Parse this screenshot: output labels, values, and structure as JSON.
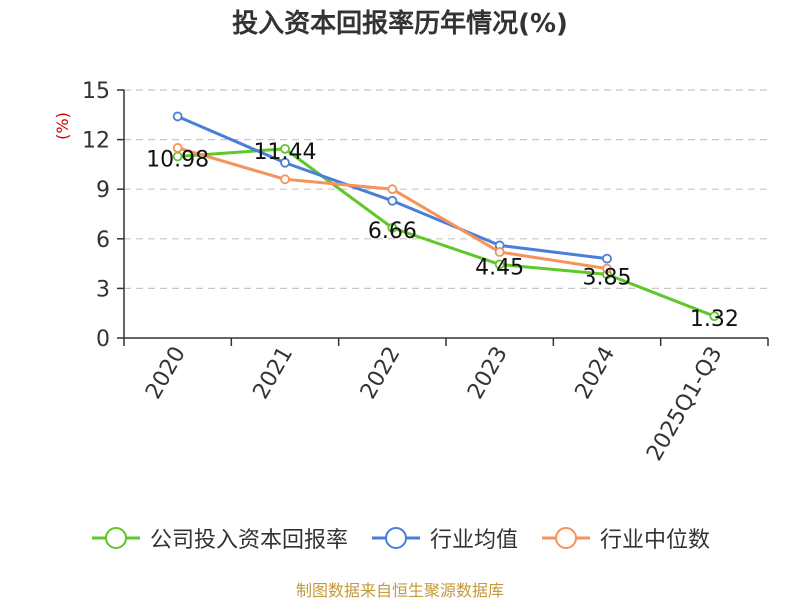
{
  "chart_data": {
    "type": "line",
    "title": "投入资本回报率历年情况(%)",
    "ylabel": "(%)",
    "xlabel": "",
    "ylim": [
      0,
      15
    ],
    "yticks": [
      0,
      3,
      6,
      9,
      12,
      15
    ],
    "grid": true,
    "legend_position": "bottom",
    "categories": [
      "2020",
      "2021",
      "2022",
      "2023",
      "2024",
      "2025Q1-Q3"
    ],
    "series": [
      {
        "name": "公司投入资本回报率",
        "color": "#5fc72a",
        "values": [
          10.98,
          11.44,
          6.66,
          4.45,
          3.85,
          1.32
        ],
        "labels": [
          "10.98",
          "11.44",
          "6.66",
          "4.45",
          "3.85",
          "1.32"
        ]
      },
      {
        "name": "行业均值",
        "color": "#4a7fd8",
        "values": [
          13.4,
          10.6,
          8.3,
          5.6,
          4.8,
          null
        ]
      },
      {
        "name": "行业中位数",
        "color": "#f5935a",
        "values": [
          11.5,
          9.6,
          9.0,
          5.2,
          4.2,
          null
        ]
      }
    ]
  },
  "source": "制图数据来自恒生聚源数据库"
}
